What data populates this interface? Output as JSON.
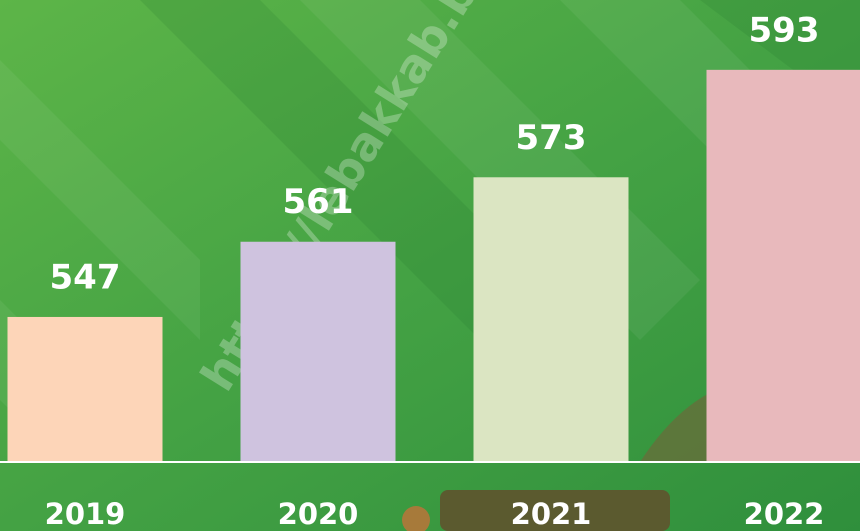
{
  "chart_data": {
    "type": "bar",
    "categories": [
      "2019",
      "2020",
      "2021",
      "2022"
    ],
    "values": [
      547,
      561,
      573,
      593
    ],
    "colors": [
      "#fdd5b8",
      "#cfc3df",
      "#dbe5c2",
      "#e8b9bc"
    ],
    "ylim": [
      520,
      606
    ],
    "watermark": "https://lebakkab.bp"
  }
}
